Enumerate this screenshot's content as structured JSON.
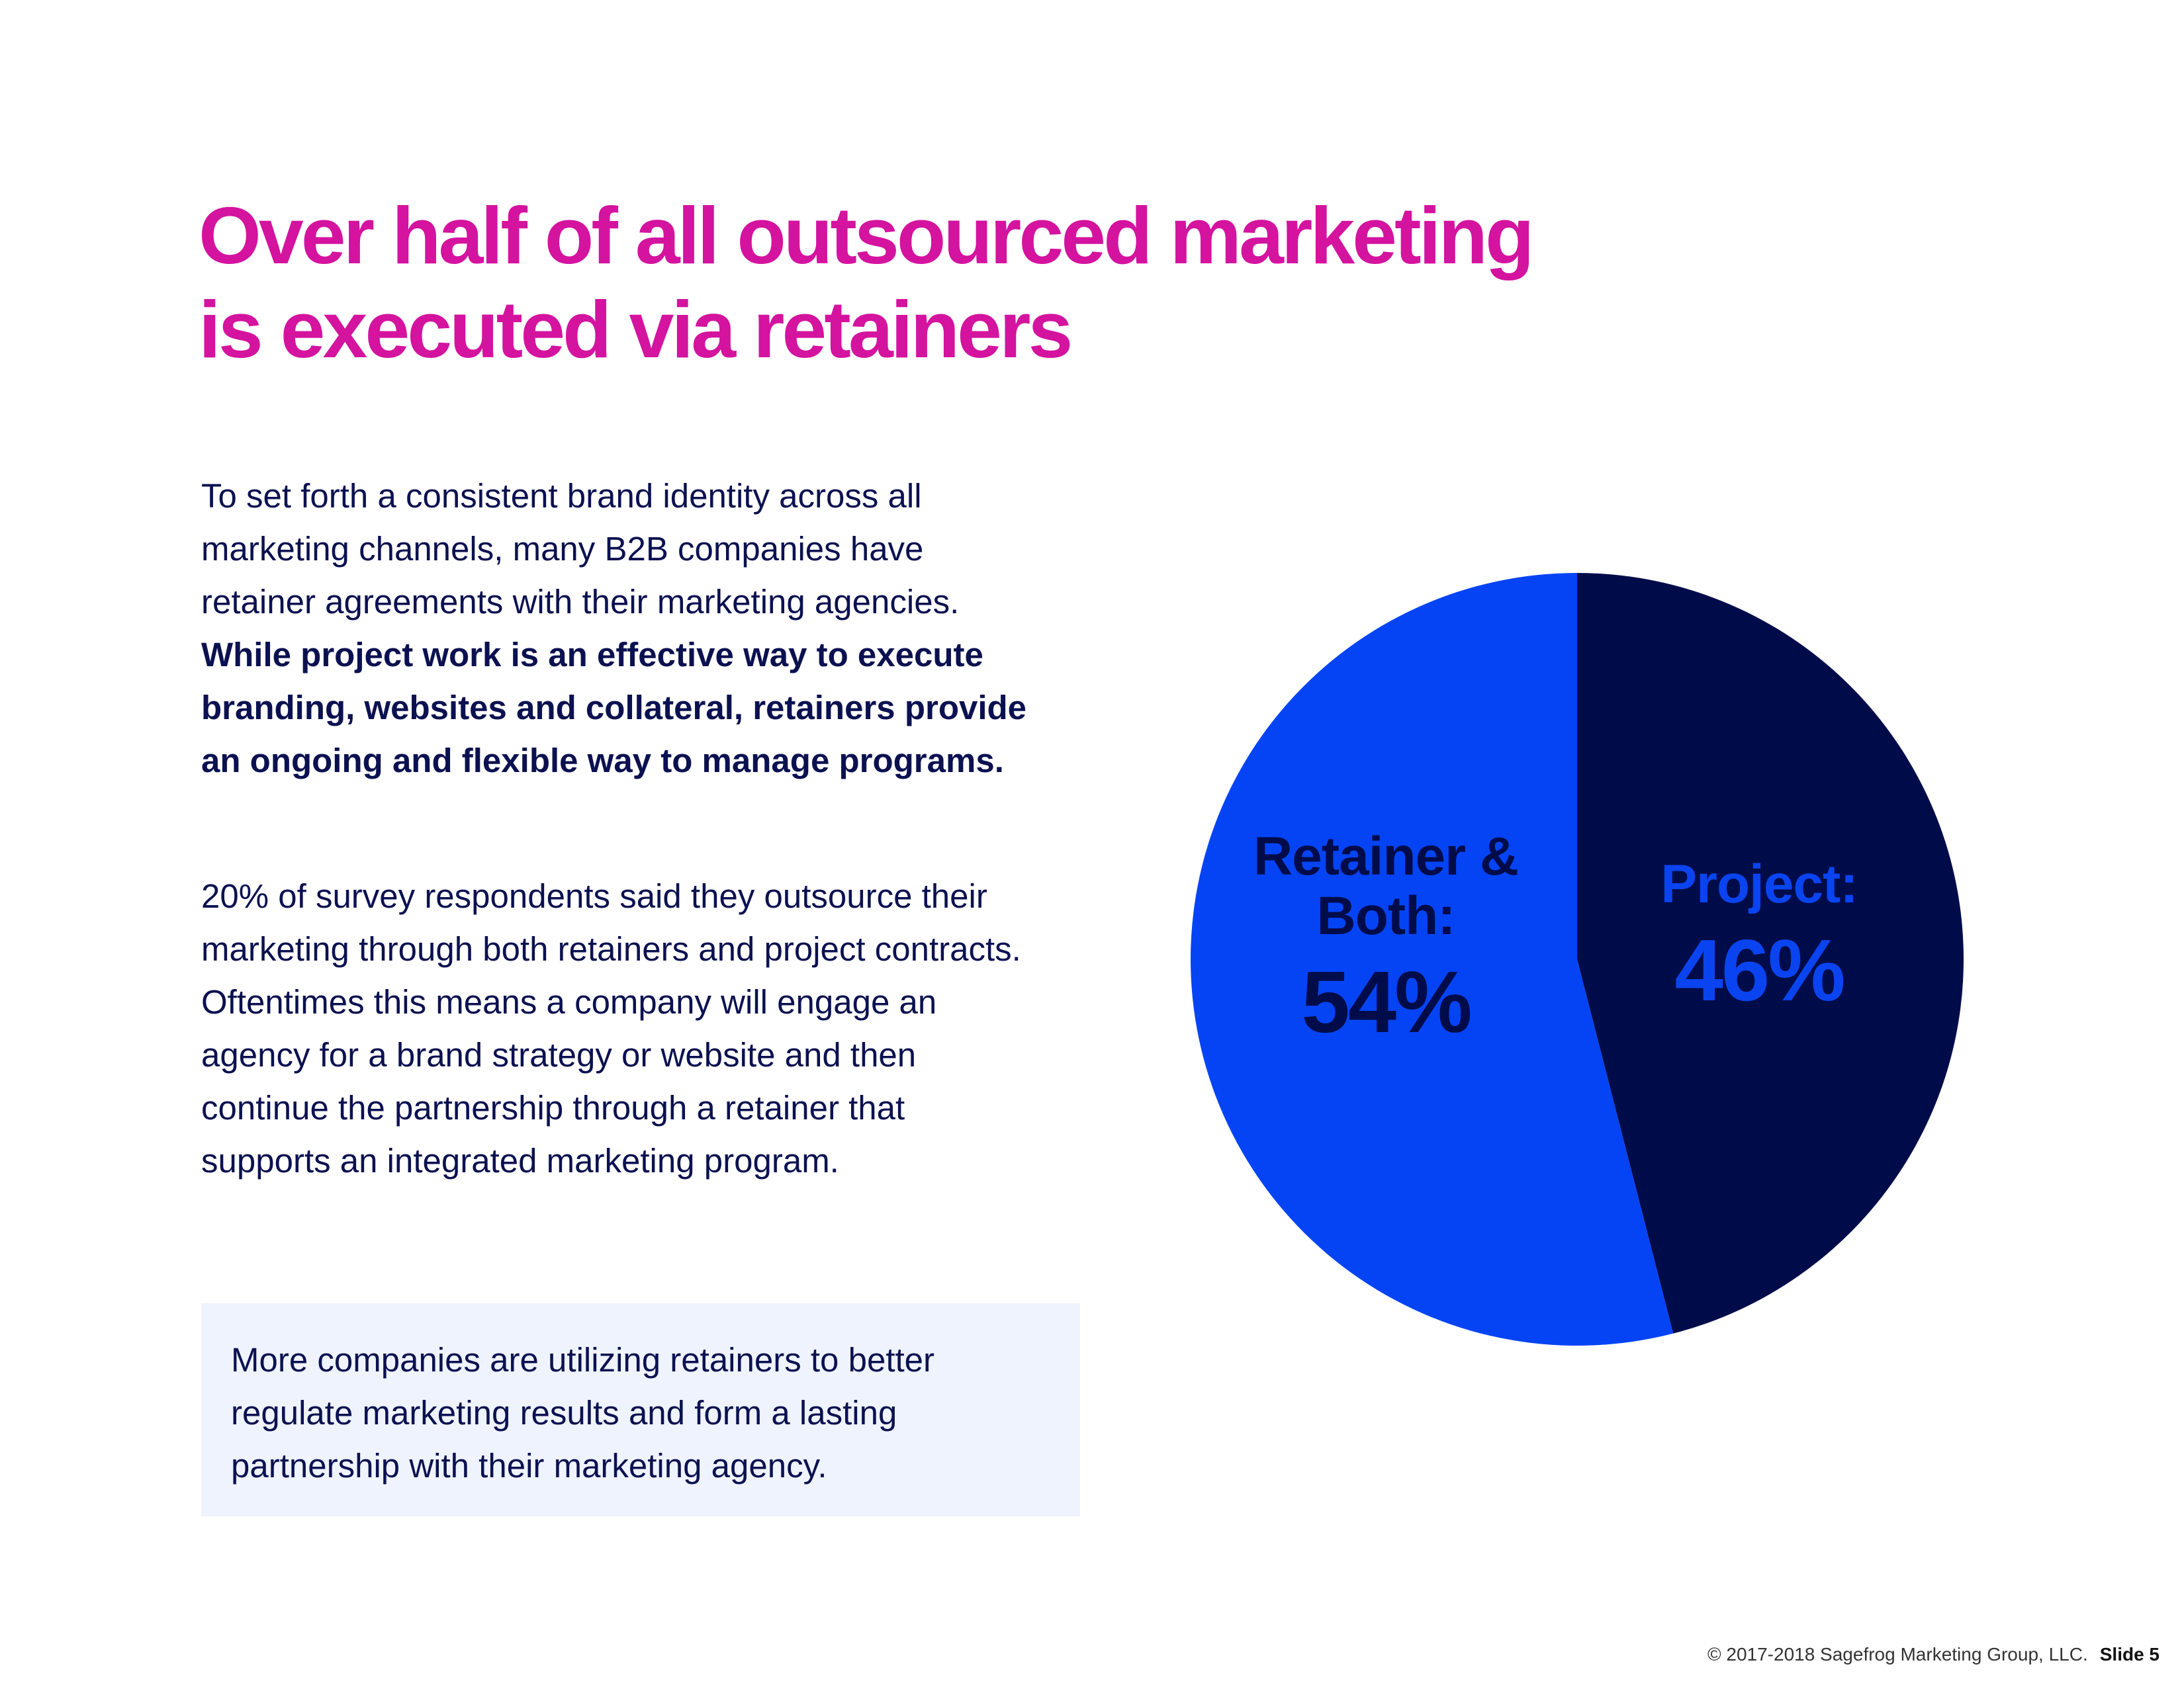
{
  "title": "Over half of all outsourced marketing is executed via retainers",
  "intro": {
    "text": "To set forth a consistent brand identity across all marketing channels, many B2B companies have retainer agreements with their marketing agencies.",
    "emphasis": "While project work is an effective way to execute branding, websites and collateral, retainers provide an ongoing and flexible way to manage programs."
  },
  "detail": "20% of survey respondents said they outsource their marketing through both retainers and project contracts. Oftentimes this means a company will engage an agency for a brand strategy or website and then continue the partnership through a retainer that supports an integrated marketing program.",
  "callout": "More companies are utilizing retainers to better regulate marketing results and form a lasting partnership with their marketing agency.",
  "footer": {
    "copyright": "© 2017-2018 Sagefrog Marketing Group, LLC.",
    "slide": "Slide 5"
  },
  "chart_data": {
    "type": "pie",
    "categories": [
      "Retainer & Both:",
      "Project:"
    ],
    "values": [
      54,
      46
    ],
    "value_labels": [
      "54%",
      "46%"
    ],
    "colors": [
      "#0544f5",
      "#000c4a"
    ],
    "startangle": 90,
    "counterclock": true
  }
}
